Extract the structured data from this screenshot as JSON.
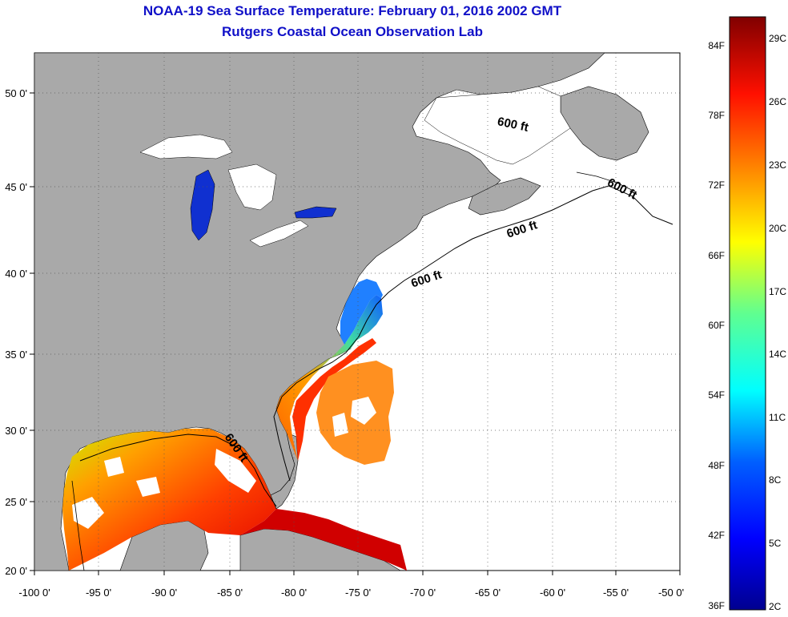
{
  "header": {
    "title": "NOAA-19 Sea Surface Temperature:  February 01, 2016 2002 GMT",
    "subtitle": "Rutgers Coastal Ocean Observation Lab"
  },
  "map": {
    "lon_range": [
      -100,
      -50
    ],
    "lat_range": [
      20,
      52.5
    ],
    "lon_ticks": [
      "-100 0'",
      "-95 0'",
      "-90 0'",
      "-85 0'",
      "-80 0'",
      "-75 0'",
      "-70 0'",
      "-65 0'",
      "-60 0'",
      "-55 0'",
      "-50 0'"
    ],
    "lat_ticks": [
      "20 0'",
      "25 0'",
      "30 0'",
      "35 0'",
      "40 0'",
      "45 0'",
      "50 0'"
    ],
    "contour_label": "600 ft",
    "colors": {
      "land": "#a9a9a9",
      "ocean_no_data": "#ffffff",
      "title": "#1010c8"
    }
  },
  "colorbar": {
    "fahrenheit_labels": [
      "84F",
      "78F",
      "72F",
      "66F",
      "60F",
      "54F",
      "48F",
      "42F",
      "36F"
    ],
    "celsius_labels": [
      "29C",
      "26C",
      "23C",
      "20C",
      "17C",
      "14C",
      "11C",
      "8C",
      "5C",
      "2C"
    ],
    "range_c": [
      2,
      30
    ]
  }
}
